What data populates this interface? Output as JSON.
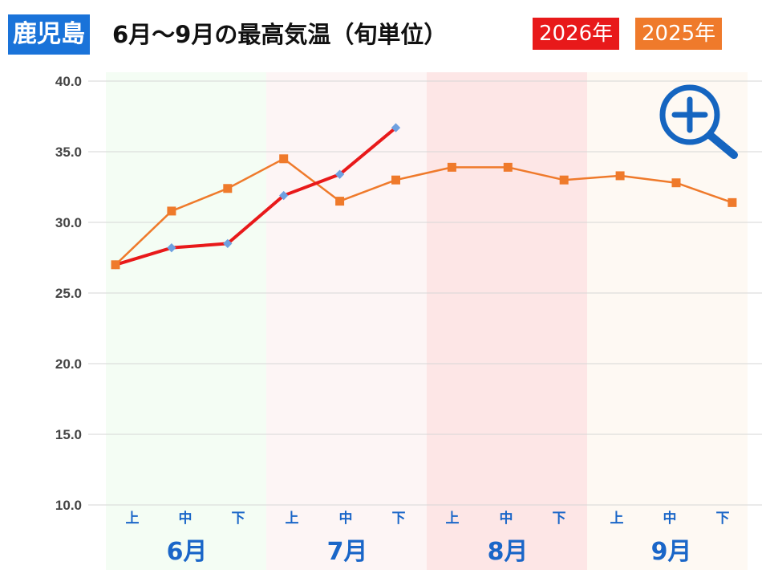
{
  "header": {
    "city": "鹿児島",
    "title": "6月～9月の最高気温（旬単位）"
  },
  "colors": {
    "city_bg": "#1a73d9",
    "series_2026": "#e8191a",
    "series_2025": "#ef7a2b",
    "marker_2026": "#6ea0e0",
    "axis_text": "#1a66c8",
    "zoom_icon": "#1565c0"
  },
  "icons": {
    "zoom": "zoom-in-magnifier-icon"
  },
  "chart_data": {
    "type": "line",
    "categories": [
      "上",
      "中",
      "下",
      "上",
      "中",
      "下",
      "上",
      "中",
      "下",
      "上",
      "中",
      "下"
    ],
    "months": [
      {
        "label": "6月",
        "bg": "#f4fdf4"
      },
      {
        "label": "7月",
        "bg": "#fdf5f5"
      },
      {
        "label": "8月",
        "bg": "#fde6e6"
      },
      {
        "label": "9月",
        "bg": "#fef9f3"
      }
    ],
    "ylim": [
      10,
      40
    ],
    "yticks": [
      "10.0",
      "15.0",
      "20.0",
      "25.0",
      "30.0",
      "35.0",
      "40.0"
    ],
    "grid": true,
    "legend": "top-right",
    "series": [
      {
        "name": "2025年",
        "color": "#ef7a2b",
        "marker": "square",
        "values": [
          27.0,
          30.8,
          32.4,
          34.5,
          31.5,
          33.0,
          33.9,
          33.9,
          33.0,
          33.3,
          32.8,
          31.4
        ]
      },
      {
        "name": "2026年",
        "color": "#e8191a",
        "marker": "diamond",
        "values": [
          27.0,
          28.2,
          28.5,
          31.9,
          33.4,
          36.7,
          null,
          null,
          null,
          null,
          null,
          null
        ]
      }
    ]
  }
}
